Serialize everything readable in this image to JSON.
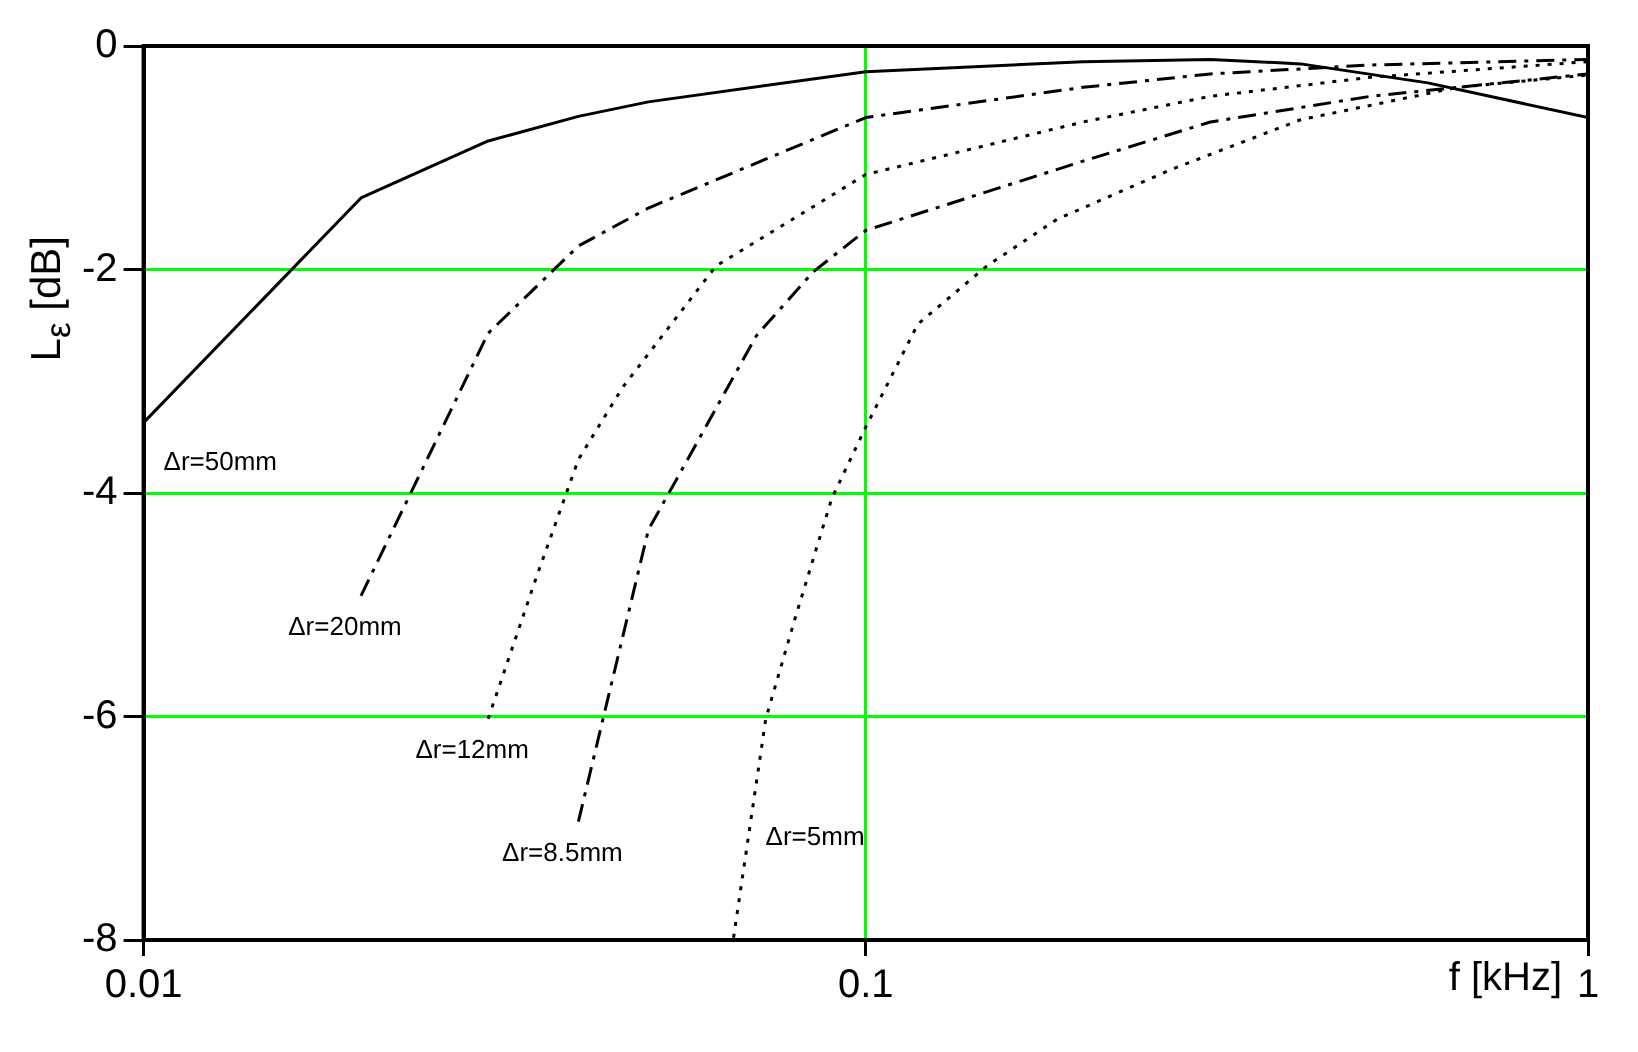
{
  "chart_data": {
    "type": "line",
    "xlabel": "f [kHz]",
    "ylabel": "L$_{ε}$ [dB]",
    "log": "x",
    "xlim": [
      0.01,
      1
    ],
    "xticks": [
      0.01,
      0.1,
      1
    ],
    "ylim": [
      -8,
      0
    ],
    "yticks": [
      -8,
      -6,
      -4,
      -2,
      0
    ],
    "grid": true,
    "legend": false,
    "marker": "none",
    "series": [
      {
        "name": "Δr=50mm",
        "color": "#000000",
        "line_style": "solid",
        "x": [
          0.01,
          0.02,
          0.03,
          0.04,
          0.05,
          0.1,
          0.2,
          0.3,
          0.4,
          0.6,
          1
        ],
        "values": [
          -3.37,
          -1.36,
          -0.85,
          -0.63,
          -0.5,
          -0.23,
          -0.14,
          -0.12,
          -0.16,
          -0.33,
          -0.64
        ]
      },
      {
        "name": "Δr=20mm",
        "color": "#000000",
        "line_style": "dashed",
        "x": [
          0.02,
          0.03,
          0.04,
          0.05,
          0.1,
          0.2,
          0.3,
          0.5,
          1
        ],
        "values": [
          -4.92,
          -2.57,
          -1.79,
          -1.45,
          -0.64,
          -0.37,
          -0.25,
          -0.17,
          -0.12
        ]
      },
      {
        "name": "Δr=12mm",
        "color": "#000000",
        "line_style": "dotted",
        "x": [
          0.03,
          0.035,
          0.04,
          0.046,
          0.062,
          0.1,
          0.2,
          0.3,
          0.5,
          1
        ],
        "values": [
          -6.02,
          -4.75,
          -3.7,
          -3.06,
          -1.97,
          -1.15,
          -0.68,
          -0.45,
          -0.28,
          -0.14
        ]
      },
      {
        "name": "Δr=8.5mm",
        "color": "#000000",
        "line_style": "dashed",
        "x": [
          0.04,
          0.05,
          0.0706,
          0.0846,
          0.1,
          0.2,
          0.3,
          0.5,
          1
        ],
        "values": [
          -6.94,
          -4.33,
          -2.59,
          -2.02,
          -1.65,
          -1.03,
          -0.68,
          -0.45,
          -0.25
        ]
      },
      {
        "name": "Δr=5mm",
        "color": "#000000",
        "line_style": "dotted",
        "x": [
          0.0656,
          0.0727,
          0.08,
          0.0897,
          0.1,
          0.118,
          0.147,
          0.184,
          0.266,
          0.4,
          0.66,
          1
        ],
        "values": [
          -7.98,
          -6.02,
          -5.1,
          -4.05,
          -3.41,
          -2.49,
          -1.97,
          -1.55,
          -1.1,
          -0.66,
          -0.37,
          -0.26
        ]
      }
    ]
  }
}
